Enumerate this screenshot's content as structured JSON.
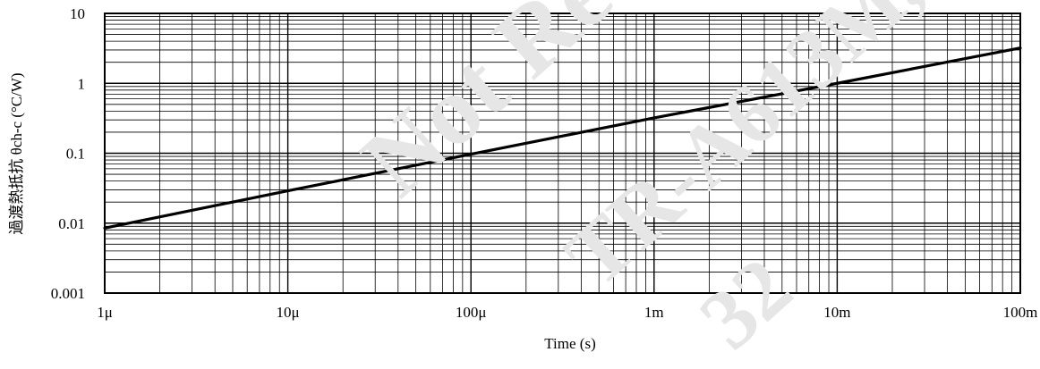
{
  "chart_data": {
    "type": "line",
    "xlabel": "Time (s)",
    "ylabel": "過渡熱抵抗 θch-c (°C/W)",
    "x_scale": "log",
    "y_scale": "log",
    "xlim": [
      1e-06,
      0.1
    ],
    "ylim": [
      0.001,
      10
    ],
    "x_tick_values": [
      1e-06,
      1e-05,
      0.0001,
      0.001,
      0.01,
      0.1
    ],
    "x_tick_labels": [
      "1μ",
      "10μ",
      "100μ",
      "1m",
      "10m",
      "100m"
    ],
    "y_tick_values": [
      0.001,
      0.01,
      0.1,
      1,
      10
    ],
    "y_tick_labels": [
      "0.001",
      "0.01",
      "0.1",
      "1",
      "10"
    ],
    "grid": true,
    "series": [
      {
        "x": [
          1e-06,
          1e-05,
          0.0001,
          0.001,
          0.01,
          0.1
        ],
        "y": [
          0.0085,
          0.029,
          0.097,
          0.32,
          1.0,
          3.2
        ]
      }
    ]
  },
  "watermark": {
    "line1": "Not Recommended for New Design",
    "line2": "TR-A613M,",
    "line3": "32"
  }
}
